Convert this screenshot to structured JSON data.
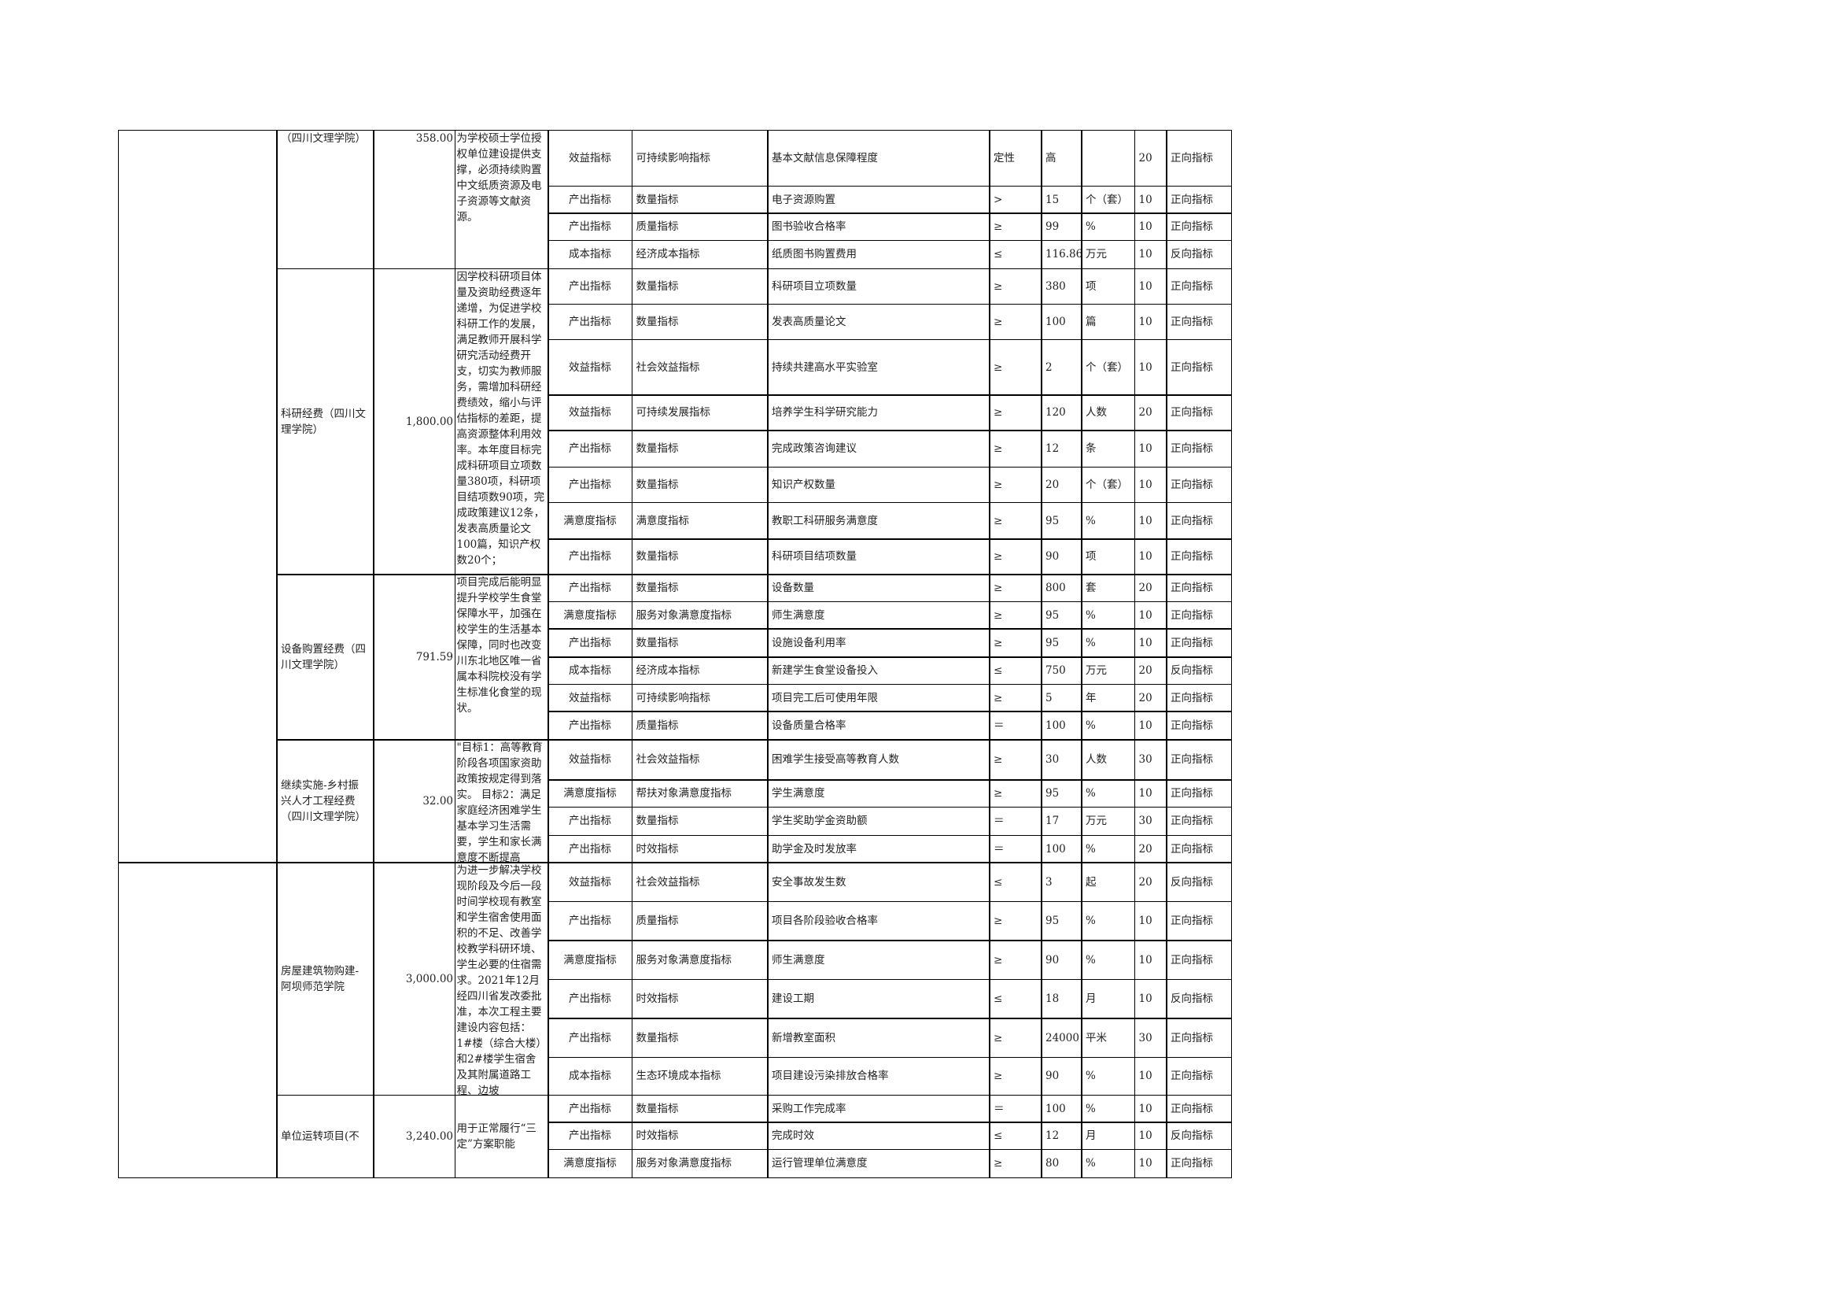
{
  "groups": [
    {
      "name": "（四川文理学院）",
      "amount": "358.00",
      "description": "为学校硕士学位授权单位建设提供支撑，必须持续购置中文纸质资源及电子资源等文献资源。",
      "rows": [
        [
          "效益指标",
          "可持续影响指标",
          "基本文献信息保障程度",
          "定性",
          "高",
          null,
          20,
          "正向指标"
        ],
        [
          "产出指标",
          "数量指标",
          "电子资源购置",
          ">",
          15,
          "个（套）",
          10,
          "正向指标"
        ],
        [
          "产出指标",
          "质量指标",
          "图书验收合格率",
          "≥",
          99,
          "%",
          10,
          "正向指标"
        ],
        [
          "成本指标",
          "经济成本指标",
          "纸质图书购置费用",
          "≤",
          116.86,
          "万元",
          10,
          "反向指标"
        ]
      ]
    },
    {
      "name": "科研经费（四川文理学院）",
      "amount": "1,800.00",
      "description": "因学校科研项目体量及资助经费逐年递增，为促进学校科研工作的发展，满足教师开展科学研究活动经费开支，切实为教师服务，需增加科研经费绩效，缩小与评估指标的差距，提高资源整体利用效率。本年度目标完成科研项目立项数量380项，科研项目结项数90项，完成政策建议12条，发表高质量论文100篇，知识产权数20个；",
      "rows": [
        [
          "产出指标",
          "数量指标",
          "科研项目立项数量",
          "≥",
          380,
          "项",
          10,
          "正向指标"
        ],
        [
          "产出指标",
          "数量指标",
          "发表高质量论文",
          "≥",
          100,
          "篇",
          10,
          "正向指标"
        ],
        [
          "效益指标",
          "社会效益指标",
          "持续共建高水平实验室",
          "≥",
          2,
          "个（套）",
          10,
          "正向指标"
        ],
        [
          "效益指标",
          "可持续发展指标",
          "培养学生科学研究能力",
          "≥",
          120,
          "人数",
          20,
          "正向指标"
        ],
        [
          "产出指标",
          "数量指标",
          "完成政策咨询建议",
          "≥",
          12,
          "条",
          10,
          "正向指标"
        ],
        [
          "产出指标",
          "数量指标",
          "知识产权数量",
          "≥",
          20,
          "个（套）",
          10,
          "正向指标"
        ],
        [
          "满意度指标",
          "满意度指标",
          "教职工科研服务满意度",
          "≥",
          95,
          "%",
          10,
          "正向指标"
        ],
        [
          "产出指标",
          "数量指标",
          "科研项目结项数量",
          "≥",
          90,
          "项",
          10,
          "正向指标"
        ]
      ]
    },
    {
      "name": "设备购置经费（四川文理学院）",
      "amount": "791.59",
      "description": "项目完成后能明显提升学校学生食堂保障水平，加强在校学生的生活基本保障，同时也改变川东北地区唯一省属本科院校没有学生标准化食堂的现状。",
      "rows": [
        [
          "产出指标",
          "数量指标",
          "设备数量",
          "≥",
          800,
          "套",
          20,
          "正向指标"
        ],
        [
          "满意度指标",
          "服务对象满意度指标",
          "师生满意度",
          "≥",
          95,
          "%",
          10,
          "正向指标"
        ],
        [
          "产出指标",
          "数量指标",
          "设施设备利用率",
          "≥",
          95,
          "%",
          10,
          "正向指标"
        ],
        [
          "成本指标",
          "经济成本指标",
          "新建学生食堂设备投入",
          "≤",
          750,
          "万元",
          20,
          "反向指标"
        ],
        [
          "效益指标",
          "可持续影响指标",
          "项目完工后可使用年限",
          "≥",
          5,
          "年",
          20,
          "正向指标"
        ],
        [
          "产出指标",
          "质量指标",
          "设备质量合格率",
          "＝",
          100,
          "%",
          10,
          "正向指标"
        ]
      ]
    },
    {
      "name": "继续实施-乡村振兴人才工程经费（四川文理学院）",
      "amount": "32.00",
      "description": "\"目标1：高等教育阶段各项国家资助政策按规定得到落实。 目标2：满足家庭经济困难学生基本学习生活需要，学生和家长满意度不断提高",
      "rows": [
        [
          "效益指标",
          "社会效益指标",
          "困难学生接受高等教育人数",
          "≥",
          30,
          "人数",
          30,
          "正向指标"
        ],
        [
          "满意度指标",
          "帮扶对象满意度指标",
          "学生满意度",
          "≥",
          95,
          "%",
          10,
          "正向指标"
        ],
        [
          "产出指标",
          "数量指标",
          "学生奖助学金资助额",
          "＝",
          17,
          "万元",
          30,
          "正向指标"
        ],
        [
          "产出指标",
          "时效指标",
          "助学金及时发放率",
          "＝",
          100,
          "%",
          20,
          "正向指标"
        ]
      ]
    },
    {
      "name": "房屋建筑物购建-阿坝师范学院",
      "amount": "3,000.00",
      "description": "为进一步解决学校现阶段及今后一段时间学校现有教室和学生宿舍使用面积的不足、改善学校教学科研环境、学生必要的住宿需求。2021年12月经四川省发改委批准，本次工程主要建设内容包括：1#楼（综合大楼）和2#楼学生宿舍及其附属道路工程、边坡",
      "rows": [
        [
          "效益指标",
          "社会效益指标",
          "安全事故发生数",
          "≤",
          3,
          "起",
          20,
          "反向指标"
        ],
        [
          "产出指标",
          "质量指标",
          "项目各阶段验收合格率",
          "≥",
          95,
          "%",
          10,
          "正向指标"
        ],
        [
          "满意度指标",
          "服务对象满意度指标",
          "师生满意度",
          "≥",
          90,
          "%",
          10,
          "正向指标"
        ],
        [
          "产出指标",
          "时效指标",
          "建设工期",
          "≤",
          18,
          "月",
          10,
          "反向指标"
        ],
        [
          "产出指标",
          "数量指标",
          "新增教室面积",
          "≥",
          24000,
          "平米",
          30,
          "正向指标"
        ],
        [
          "成本指标",
          "生态环境成本指标",
          "项目建设污染排放合格率",
          "≥",
          90,
          "%",
          10,
          "正向指标"
        ]
      ]
    },
    {
      "name": "单位运转项目(不",
      "amount": "3,240.00",
      "description": "用于正常履行“三定”方案职能",
      "rows": [
        [
          "产出指标",
          "数量指标",
          "采购工作完成率",
          "＝",
          100,
          "%",
          10,
          "正向指标"
        ],
        [
          "产出指标",
          "时效指标",
          "完成时效",
          "≤",
          12,
          "月",
          10,
          "反向指标"
        ],
        [
          "满意度指标",
          "服务对象满意度指标",
          "运行管理单位满意度",
          "≥",
          80,
          "%",
          10,
          "正向指标"
        ]
      ]
    }
  ]
}
